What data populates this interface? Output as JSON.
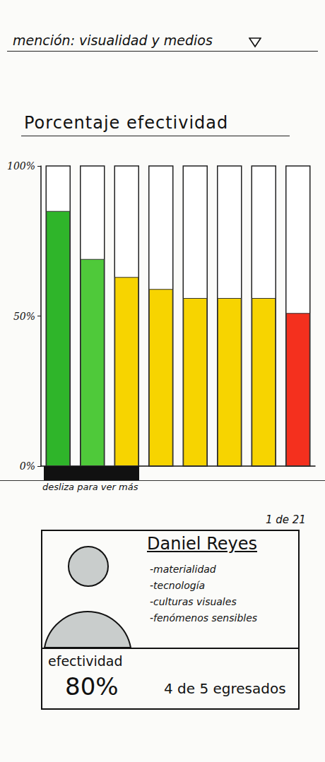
{
  "header": "mención: visualidad y medios",
  "chart_data": {
    "type": "bar",
    "title": "Porcentaje efectividad",
    "categories": [
      null,
      null,
      null,
      null,
      null,
      null,
      null,
      null
    ],
    "values": [
      85,
      69,
      63,
      59,
      56,
      56,
      56,
      51
    ],
    "colors": [
      "#2fb52a",
      "#4fc93a",
      "#f7d400",
      "#f7d400",
      "#f7d400",
      "#f7d400",
      "#f7d400",
      "#f4301e"
    ],
    "ylim": [
      0,
      100
    ],
    "yticks": [
      {
        "value": 0,
        "label": "0%"
      },
      {
        "value": 50,
        "label": "50%"
      },
      {
        "value": 100,
        "label": "100%"
      }
    ],
    "grid": false
  },
  "scroll_hint": "desliza para ver más",
  "card": {
    "counter": "1 de 21",
    "name": "Daniel Reyes",
    "topics": [
      "-materialidad",
      "-tecnología",
      "-culturas visuales",
      "-fenómenos sensibles"
    ],
    "effectiveness_label": "efectividad",
    "effectiveness": "80%",
    "graduates": "4 de 5 egresados"
  }
}
